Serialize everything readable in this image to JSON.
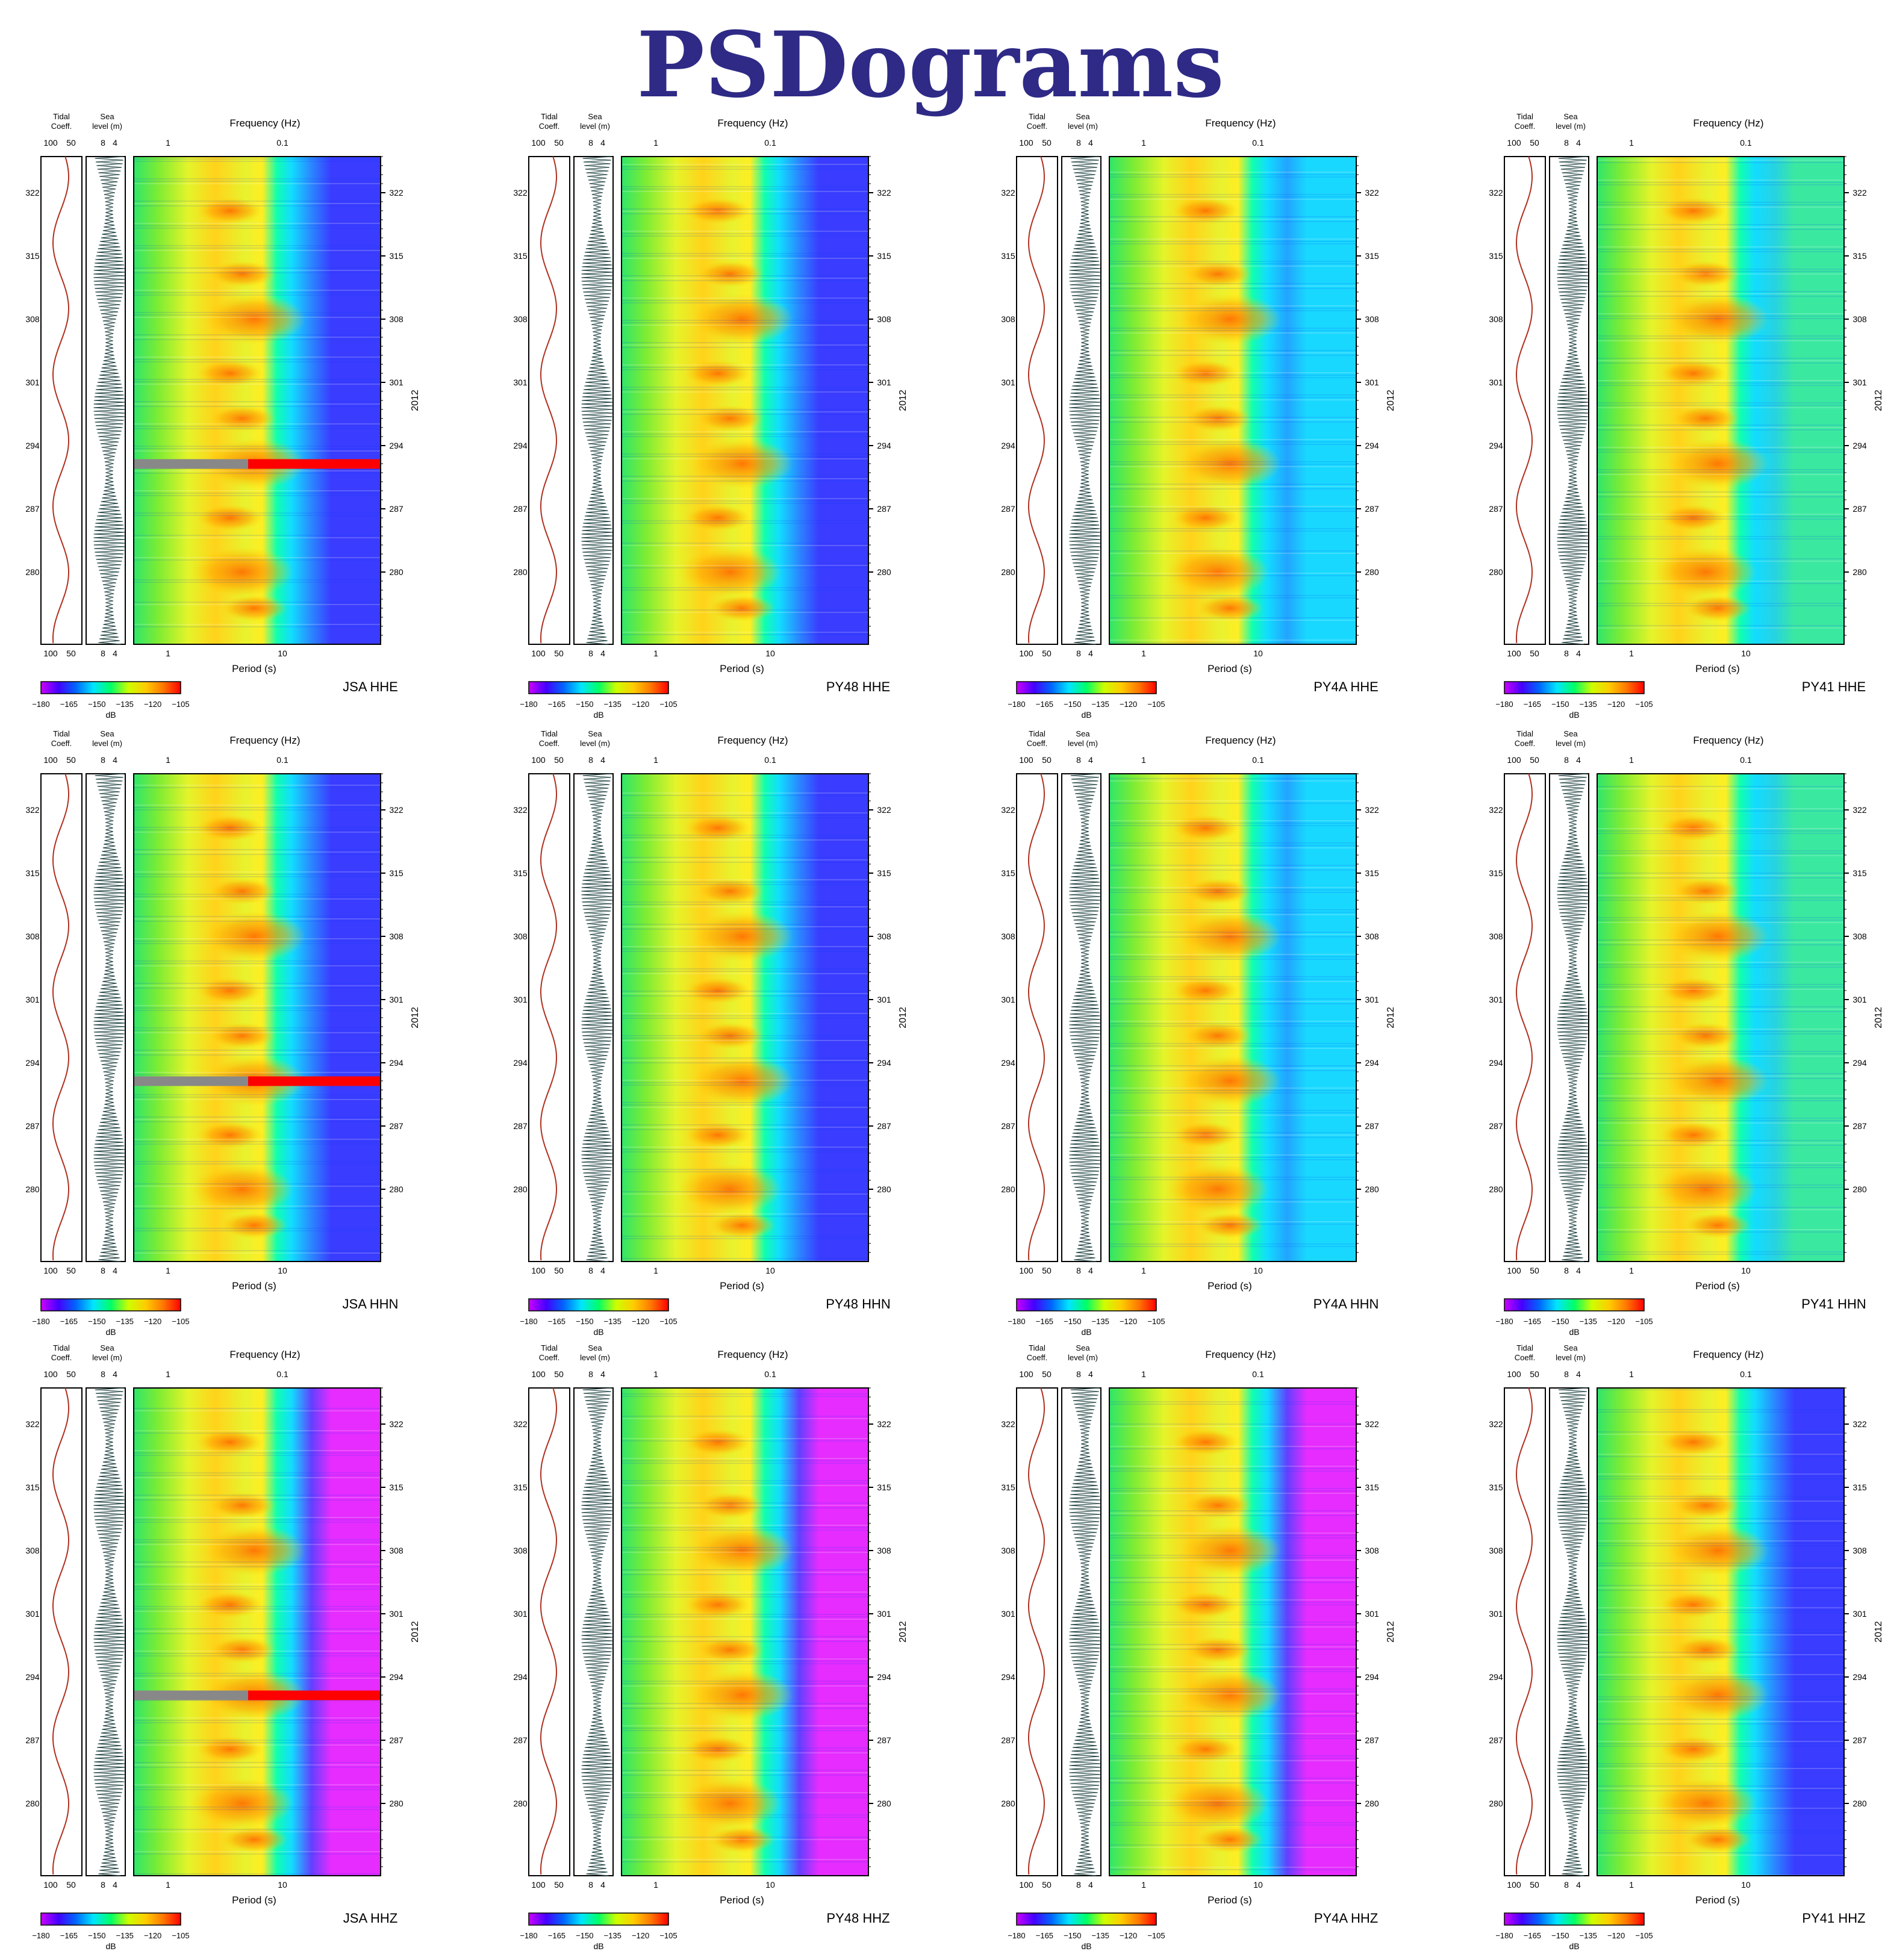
{
  "title": "PSDograms",
  "labels": {
    "tidal": [
      "Tidal",
      "Coeff."
    ],
    "sea": [
      "Sea",
      "level (m)"
    ],
    "frequency": "Frequency (Hz)",
    "period": "Period (s)",
    "year": "2012",
    "db": "dB"
  },
  "ticks": {
    "tidal": [
      "100",
      "50"
    ],
    "sea": [
      "8",
      "4"
    ],
    "frequency": [
      "1",
      "0.1"
    ],
    "period": [
      "1",
      "10"
    ],
    "day": [
      "322",
      "315",
      "308",
      "301",
      "294",
      "287",
      "280"
    ],
    "colorbar": [
      "−180",
      "−165",
      "−150",
      "−135",
      "−120",
      "−105"
    ]
  },
  "colors": {
    "title": "#2e2a86",
    "tidal_curve": "#b03020",
    "sea_level": "#2f4f4f",
    "gap_gray": "#888888",
    "gap_red": "#ff0000",
    "colormap": [
      "#cc00ff",
      "#4400ff",
      "#0066ff",
      "#00e5ff",
      "#00ff66",
      "#ccff00",
      "#ffcc00",
      "#ff7700",
      "#ff0000"
    ]
  },
  "chart_data": [
    {
      "type": "heatmap",
      "station": "JSA",
      "channel": "HHE",
      "label": "JSA HHE",
      "gap": true,
      "variant": "blue",
      "colorbar_range": [
        -180,
        -105
      ]
    },
    {
      "type": "heatmap",
      "station": "PY48",
      "channel": "HHE",
      "label": "PY48 HHE",
      "gap": false,
      "variant": "blue",
      "colorbar_range": [
        -180,
        -105
      ]
    },
    {
      "type": "heatmap",
      "station": "PY4A",
      "channel": "HHE",
      "label": "PY4A HHE",
      "gap": false,
      "variant": "cyan",
      "colorbar_range": [
        -180,
        -105
      ]
    },
    {
      "type": "heatmap",
      "station": "PY41",
      "channel": "HHE",
      "label": "PY41 HHE",
      "gap": false,
      "variant": "green",
      "colorbar_range": [
        -180,
        -105
      ]
    },
    {
      "type": "heatmap",
      "station": "JSA",
      "channel": "HHN",
      "label": "JSA HHN",
      "gap": true,
      "variant": "blue",
      "colorbar_range": [
        -180,
        -105
      ]
    },
    {
      "type": "heatmap",
      "station": "PY48",
      "channel": "HHN",
      "label": "PY48 HHN",
      "gap": false,
      "variant": "blue",
      "colorbar_range": [
        -180,
        -105
      ]
    },
    {
      "type": "heatmap",
      "station": "PY4A",
      "channel": "HHN",
      "label": "PY4A HHN",
      "gap": false,
      "variant": "cyan",
      "colorbar_range": [
        -180,
        -105
      ]
    },
    {
      "type": "heatmap",
      "station": "PY41",
      "channel": "HHN",
      "label": "PY41 HHN",
      "gap": false,
      "variant": "green",
      "colorbar_range": [
        -180,
        -105
      ]
    },
    {
      "type": "heatmap",
      "station": "JSA",
      "channel": "HHZ",
      "label": "JSA HHZ",
      "gap": true,
      "variant": "magenta",
      "colorbar_range": [
        -180,
        -105
      ]
    },
    {
      "type": "heatmap",
      "station": "PY48",
      "channel": "HHZ",
      "label": "PY48 HHZ",
      "gap": false,
      "variant": "magenta",
      "colorbar_range": [
        -180,
        -105
      ]
    },
    {
      "type": "heatmap",
      "station": "PY4A",
      "channel": "HHZ",
      "label": "PY4A HHZ",
      "gap": false,
      "variant": "magenta",
      "colorbar_range": [
        -180,
        -105
      ]
    },
    {
      "type": "heatmap",
      "station": "PY41",
      "channel": "HHZ",
      "label": "PY41 HHZ",
      "gap": false,
      "variant": "blue",
      "colorbar_range": [
        -180,
        -105
      ]
    }
  ]
}
